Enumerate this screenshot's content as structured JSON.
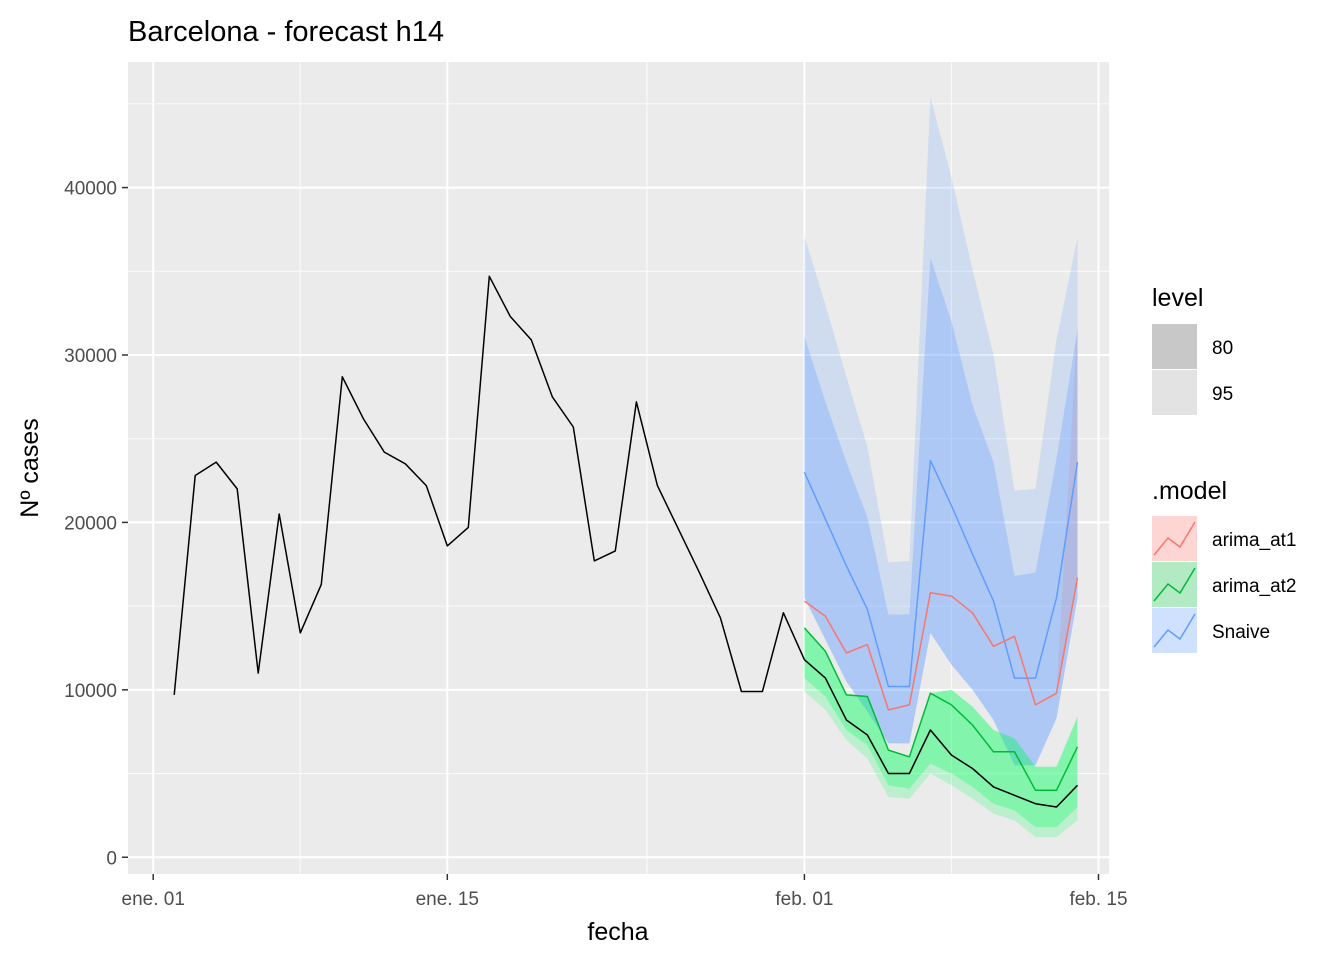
{
  "chart_data": {
    "type": "line",
    "title": "Barcelona - forecast h14",
    "xlabel": "fecha",
    "ylabel": "Nº cases",
    "x_ticks": [
      "ene. 01",
      "ene. 15",
      "feb. 01",
      "feb. 15"
    ],
    "x_tick_days": [
      1,
      15,
      32,
      46
    ],
    "x_minor_days": [
      8,
      24.5,
      39
    ],
    "xlim_days": [
      -0.2,
      46.5
    ],
    "y_ticks": [
      0,
      10000,
      20000,
      30000,
      40000
    ],
    "y_tick_labels": [
      "0",
      "10000",
      "20000",
      "30000",
      "40000"
    ],
    "ylim": [
      -1000,
      47500
    ],
    "grid": true,
    "legend_position": "right",
    "history": {
      "name": "",
      "color": "#000000",
      "dates": [
        "2021-01-02",
        "2021-01-03",
        "2021-01-04",
        "2021-01-05",
        "2021-01-06",
        "2021-01-07",
        "2021-01-08",
        "2021-01-09",
        "2021-01-10",
        "2021-01-11",
        "2021-01-12",
        "2021-01-13",
        "2021-01-14",
        "2021-01-15",
        "2021-01-16",
        "2021-01-17",
        "2021-01-18",
        "2021-01-19",
        "2021-01-20",
        "2021-01-21",
        "2021-01-22",
        "2021-01-23",
        "2021-01-24",
        "2021-01-25",
        "2021-01-26",
        "2021-01-27",
        "2021-01-28",
        "2021-01-29",
        "2021-01-30",
        "2021-01-31",
        "2021-02-01"
      ],
      "values": [
        9700,
        22800,
        23600,
        22000,
        11000,
        20500,
        13400,
        16300,
        28700,
        26200,
        24200,
        23500,
        22200,
        18600,
        19700,
        34700,
        32300,
        30900,
        27500,
        25700,
        17700,
        18300,
        27200,
        22200,
        19600,
        17000,
        14300,
        9900,
        9900,
        14600,
        11800
      ]
    },
    "forecast_dates": [
      "2021-02-01",
      "2021-02-02",
      "2021-02-03",
      "2021-02-04",
      "2021-02-05",
      "2021-02-06",
      "2021-02-07",
      "2021-02-08",
      "2021-02-09",
      "2021-02-10",
      "2021-02-11",
      "2021-02-12",
      "2021-02-13",
      "2021-02-14"
    ],
    "forecast_line": {
      "name": "",
      "color": "#000000",
      "values": [
        11800,
        10700,
        8200,
        7300,
        5000,
        5000,
        7600,
        6100,
        5300,
        4200,
        3700,
        3200,
        3000,
        4300
      ]
    },
    "series": [
      {
        "name": "Snaive",
        "color": "#619CFF",
        "fill_color": "#619CFF",
        "values": [
          23000,
          20200,
          17400,
          14800,
          10200,
          10200,
          23700,
          21000,
          18100,
          15300,
          10700,
          10700,
          15500,
          23600
        ],
        "lo80": [
          15500,
          13000,
          10500,
          8700,
          6800,
          6800,
          13400,
          11500,
          10000,
          8200,
          5500,
          5500,
          8300,
          15500
        ],
        "hi80": [
          31100,
          27200,
          23600,
          20300,
          14500,
          14500,
          35800,
          32000,
          27000,
          23600,
          16800,
          17000,
          23800,
          31500
        ],
        "lo95": [
          15500,
          13000,
          10500,
          8700,
          6800,
          6800,
          13400,
          11500,
          10000,
          8200,
          5500,
          5500,
          8300,
          15500
        ],
        "hi95": [
          37100,
          33000,
          28700,
          24500,
          17600,
          17700,
          45400,
          40600,
          35100,
          30000,
          21900,
          22000,
          30900,
          37000
        ]
      },
      {
        "name": "arima_at1",
        "color": "#F8766D",
        "fill_color": "#F8766D",
        "values": [
          15300,
          14400,
          12200,
          12700,
          8800,
          9100,
          15800,
          15600,
          14600,
          12600,
          13200,
          9100,
          9800,
          16700
        ],
        "lo80": [
          15300,
          14400,
          12200,
          12700,
          8800,
          9100,
          15800,
          15600,
          14600,
          12600,
          13200,
          9100,
          9800,
          16700
        ],
        "hi80": [
          15300,
          14400,
          12200,
          12700,
          8800,
          9100,
          15800,
          15600,
          14600,
          12600,
          13200,
          9100,
          9800,
          16700
        ],
        "lo95": [
          15300,
          14400,
          12200,
          12700,
          8800,
          9100,
          15800,
          15600,
          14600,
          12600,
          13200,
          9100,
          9800,
          16700
        ],
        "hi95": [
          15300,
          14400,
          12200,
          12700,
          8800,
          9100,
          15800,
          15600,
          14600,
          12600,
          13200,
          9100,
          9800,
          32000
        ]
      },
      {
        "name": "arima_at2",
        "color": "#00BA38",
        "fill_color": "#00FF5A",
        "values": [
          13700,
          12300,
          9700,
          9600,
          6400,
          6000,
          9800,
          9100,
          7900,
          6300,
          6300,
          4000,
          4000,
          6600
        ],
        "lo80": [
          10700,
          9600,
          7600,
          6700,
          4300,
          4100,
          5600,
          5000,
          4200,
          3200,
          2800,
          1800,
          1800,
          3000
        ],
        "hi80": [
          13700,
          12300,
          9700,
          9600,
          6400,
          6000,
          9800,
          10000,
          9000,
          7600,
          7100,
          5400,
          5400,
          8400
        ],
        "lo95": [
          9900,
          8800,
          7000,
          5900,
          3600,
          3500,
          5000,
          4300,
          3500,
          2600,
          2200,
          1200,
          1200,
          2200
        ],
        "hi95": [
          13700,
          12300,
          9700,
          9600,
          6400,
          6000,
          9800,
          10000,
          9000,
          7600,
          7100,
          5400,
          5400,
          8400
        ]
      }
    ],
    "legend": {
      "level_title": "level",
      "level_items": [
        {
          "label": "80",
          "color": "#c8c8c8"
        },
        {
          "label": "95",
          "color": "#e3e3e3"
        }
      ],
      "model_title": ".model",
      "model_items": [
        {
          "label": "arima_at1",
          "color": "#F8766D"
        },
        {
          "label": "arima_at2",
          "color": "#00BA38"
        },
        {
          "label": "Snaive",
          "color": "#619CFF"
        }
      ]
    }
  }
}
